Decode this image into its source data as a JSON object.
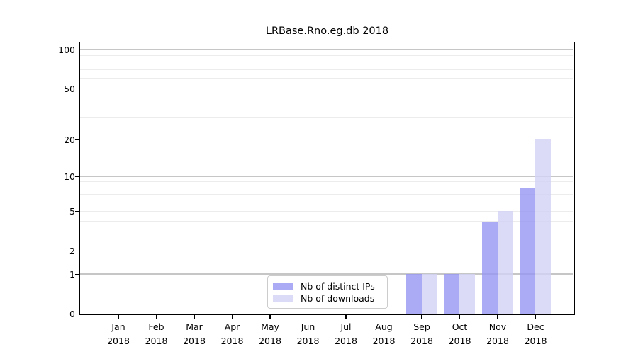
{
  "title": "LRBase.Rno.eg.db 2018",
  "chart_data": {
    "type": "bar",
    "title": "LRBase.Rno.eg.db 2018",
    "year_label": "2018",
    "categories": [
      "Jan",
      "Feb",
      "Mar",
      "Apr",
      "May",
      "Jun",
      "Jul",
      "Aug",
      "Sep",
      "Oct",
      "Nov",
      "Dec"
    ],
    "series": [
      {
        "name": "Nb of distinct IPs",
        "color": "rgba(150,150,242,0.8)",
        "values": [
          0,
          0,
          0,
          0,
          0,
          0,
          0,
          0,
          1,
          1,
          4,
          8
        ]
      },
      {
        "name": "Nb of downloads",
        "color": "rgba(210,210,246,0.8)",
        "values": [
          0,
          0,
          0,
          0,
          0,
          0,
          0,
          0,
          1,
          1,
          5,
          20
        ]
      }
    ],
    "yscale": "log1p",
    "ylim": [
      0,
      113
    ],
    "y_ticks": [
      0,
      1,
      2,
      5,
      10,
      20,
      50,
      100
    ],
    "y_minor_ticks": [
      2,
      3,
      4,
      5,
      6,
      7,
      8,
      9,
      20,
      30,
      40,
      50,
      60,
      70,
      80,
      90
    ],
    "grid": true,
    "legend_position": "inside lower-center",
    "colors": {
      "major_grid": "#c6c6c6",
      "minor_grid": "#ececec",
      "spine": "#000000",
      "background": "#ffffff"
    }
  }
}
